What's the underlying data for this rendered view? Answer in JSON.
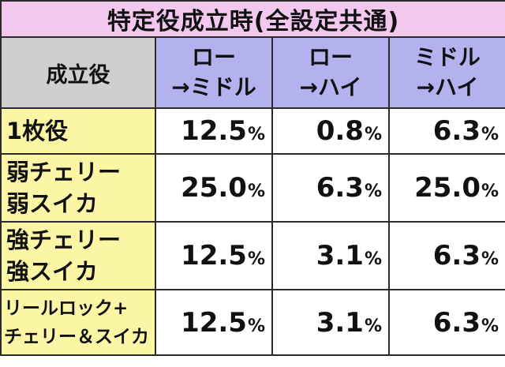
{
  "title": "特定役成立時(全設定共通)",
  "headers": {
    "role": "成立役",
    "col1": [
      "ロー",
      "→ミドル"
    ],
    "col2": [
      "ロー",
      "→ハイ"
    ],
    "col3": [
      "ミドル",
      "→ハイ"
    ]
  },
  "unit": "%",
  "rows": [
    {
      "role": [
        "1枚役"
      ],
      "values": [
        "12.5",
        "0.8",
        "6.3"
      ]
    },
    {
      "role": [
        "弱チェリー",
        "弱スイカ"
      ],
      "values": [
        "25.0",
        "6.3",
        "25.0"
      ]
    },
    {
      "role": [
        "強チェリー",
        "強スイカ"
      ],
      "values": [
        "12.5",
        "3.1",
        "6.3"
      ]
    },
    {
      "role": [
        "リールロック+",
        "チェリー＆スイカ"
      ],
      "values": [
        "12.5",
        "3.1",
        "6.3"
      ]
    }
  ],
  "colors": {
    "title_bg": "#f2c8ee",
    "role_header_bg": "#cfcfcf",
    "col_header_bg": "#b3b1ee",
    "role_cell_bg": "#fbf6a6",
    "value_cell_bg": "#ffffff"
  }
}
